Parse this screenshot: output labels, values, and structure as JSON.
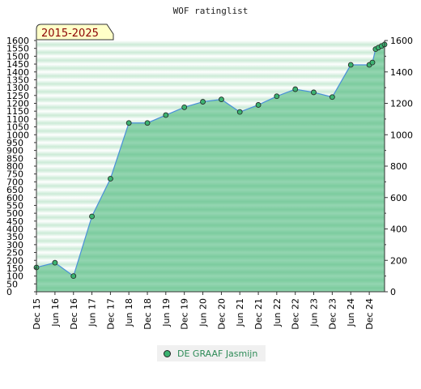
{
  "chart_data": {
    "type": "area",
    "title": "WOF ratinglist",
    "badge": "2015-2025",
    "ylim": [
      0,
      1600
    ],
    "y_ticks_left": [
      "1600",
      "1550",
      "1500",
      "1450",
      "1400",
      "1350",
      "1300",
      "1250",
      "1200",
      "1150",
      "1100",
      "1050",
      "1000",
      "950",
      "900",
      "850",
      "800",
      "750",
      "700",
      "650",
      "600",
      "550",
      "500",
      "450",
      "400",
      "350",
      "300",
      "250",
      "200",
      "150",
      "100",
      "50",
      "0"
    ],
    "y_ticks_right": [
      "1600",
      "1400",
      "1200",
      "1000",
      "800",
      "600",
      "400",
      "200",
      "0"
    ],
    "x_ticks": [
      "Dec 15",
      "Jun 16",
      "Dec 16",
      "Jun 17",
      "Dec 17",
      "Jun 18",
      "Dec 18",
      "Jun 19",
      "Dec 19",
      "Jun 20",
      "Dec 20",
      "Jun 21",
      "Dec 21",
      "Jun 22",
      "Dec 22",
      "Jun 23",
      "Dec 23",
      "Jun 24",
      "Dec 24"
    ],
    "series": [
      {
        "name": "DE GRAAF Jasmijn",
        "color": "#3cb371",
        "x": [
          "2015-12",
          "2016-06",
          "2016-12",
          "2017-06",
          "2017-12",
          "2018-06",
          "2018-12",
          "2019-06",
          "2019-12",
          "2020-06",
          "2020-12",
          "2021-06",
          "2021-12",
          "2022-06",
          "2022-12",
          "2023-06",
          "2023-12",
          "2024-06",
          "2024-12",
          "2025-01",
          "2025-02",
          "2025-03",
          "2025-04",
          "2025-05"
        ],
        "values": [
          155,
          185,
          100,
          480,
          720,
          1075,
          1075,
          1125,
          1175,
          1210,
          1225,
          1145,
          1190,
          1245,
          1290,
          1270,
          1240,
          1445,
          1445,
          1460,
          1545,
          1555,
          1565,
          1575
        ]
      }
    ],
    "grid": true,
    "legend_position": "bottom"
  }
}
